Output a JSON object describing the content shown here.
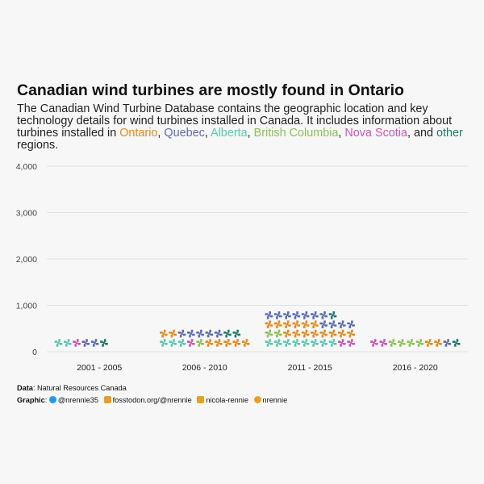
{
  "title": "Canadian wind turbines are mostly found in Ontario",
  "subtitle": {
    "intro": "The Canadian Wind Turbine Database contains the geographic location and key technology details for wind turbines installed in Canada. It includes information about turbines installed in ",
    "provinces": [
      {
        "label": "Ontario",
        "sep": ", ",
        "color": "#e58a17"
      },
      {
        "label": "Quebec",
        "sep": ", ",
        "color": "#5b6cb3"
      },
      {
        "label": "Alberta",
        "sep": ", ",
        "color": "#5bc7b0"
      },
      {
        "label": "British Columbia",
        "sep": ", ",
        "color": "#8cc152"
      },
      {
        "label": "Nova Scotia",
        "sep": ", and ",
        "color": "#cf54b9"
      },
      {
        "label": "other",
        "sep": "",
        "color": "#1f7a64"
      }
    ],
    "outro": " regions."
  },
  "chart_data": {
    "type": "bar",
    "subtype": "waffle-pictogram",
    "unit_per_icon": 100,
    "icons_per_row": 10,
    "icon": "pinwheel-icon",
    "categories": [
      "2001 - 2005",
      "2006 - 2010",
      "2011 - 2015",
      "2016 - 2020"
    ],
    "series": [
      {
        "name": "Alberta",
        "color": "#5bc7b0",
        "values": [
          200,
          300,
          800,
          0
        ]
      },
      {
        "name": "Nova Scotia",
        "color": "#cf54b9",
        "values": [
          100,
          100,
          200,
          200
        ]
      },
      {
        "name": "British Columbia",
        "color": "#8cc152",
        "values": [
          0,
          100,
          200,
          400
        ]
      },
      {
        "name": "Ontario",
        "color": "#e58a17",
        "values": [
          0,
          700,
          1400,
          200
        ]
      },
      {
        "name": "Quebec",
        "color": "#5b6cb3",
        "values": [
          200,
          500,
          1100,
          100
        ]
      },
      {
        "name": "other",
        "color": "#1f7a64",
        "values": [
          100,
          200,
          100,
          100
        ]
      }
    ],
    "yticks": [
      0,
      1000,
      2000,
      3000,
      4000
    ],
    "ytick_labels": [
      "0",
      "1,000",
      "2,000",
      "3,000",
      "4,000"
    ],
    "ylim": [
      0,
      4000
    ],
    "grid": true,
    "legend": "none"
  },
  "caption": {
    "data_label": "Data",
    "data_source": ": Natural Resources Canada",
    "graphic_label": "Graphic",
    "twitter": "@nrennie35",
    "mastodon": "fosstodon.org/@nrennie",
    "linkedin": "nicola-rennie",
    "github": "nrennie"
  }
}
